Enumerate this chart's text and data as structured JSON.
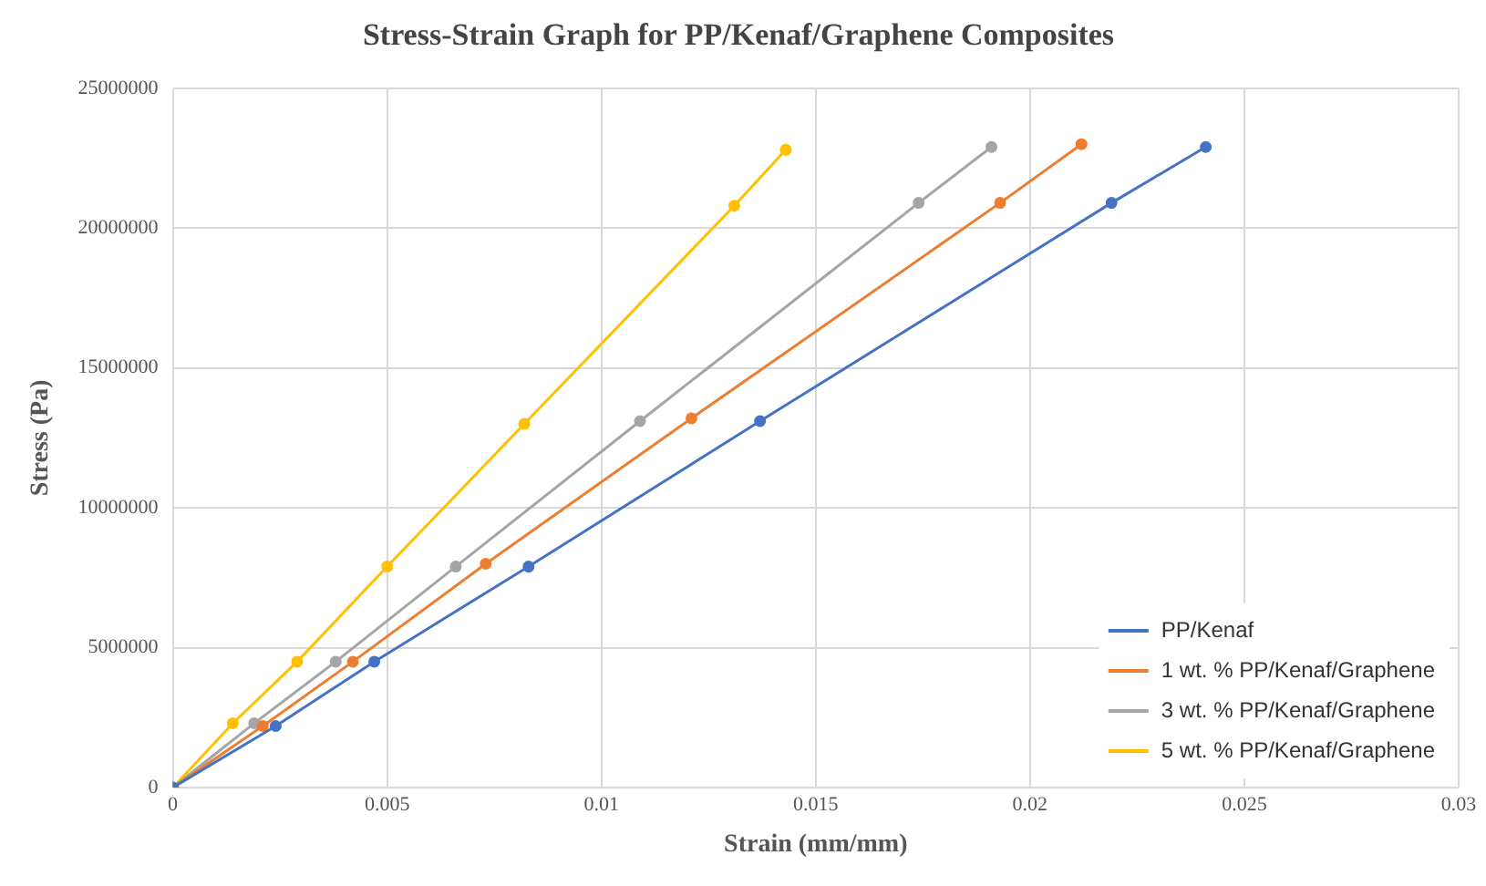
{
  "chart_data": {
    "type": "line",
    "title": "Stress-Strain Graph for PP/Kenaf/Graphene Composites",
    "xlabel": "Strain (mm/mm)",
    "ylabel": "Stress (Pa)",
    "xlim": [
      0,
      0.03
    ],
    "xticks": [
      0,
      0.005,
      0.01,
      0.015,
      0.02,
      0.025,
      0.03
    ],
    "ylim": [
      0,
      25000000
    ],
    "yticks": [
      0,
      5000000,
      10000000,
      15000000,
      20000000,
      25000000
    ],
    "grid": true,
    "legend": "bottom right",
    "marker": "circle",
    "line_style": "solid",
    "series": [
      {
        "name": "PP/Kenaf",
        "color": "#4472c4",
        "x": [
          0,
          0.0024,
          0.0047,
          0.0083,
          0.0137,
          0.0219,
          0.0241
        ],
        "values": [
          0,
          2200000,
          4500000,
          7900000,
          13100000,
          20900000,
          22900000
        ]
      },
      {
        "name": "1 wt. % PP/Kenaf/Graphene",
        "color": "#ed7d31",
        "x": [
          0,
          0.0021,
          0.0042,
          0.0073,
          0.0121,
          0.0193,
          0.0212
        ],
        "values": [
          0,
          2200000,
          4500000,
          8000000,
          13200000,
          20900000,
          23000000
        ]
      },
      {
        "name": "3 wt. % PP/Kenaf/Graphene",
        "color": "#a5a5a5",
        "x": [
          0,
          0.0019,
          0.0038,
          0.0066,
          0.0109,
          0.0174,
          0.0191
        ],
        "values": [
          0,
          2300000,
          4500000,
          7900000,
          13100000,
          20900000,
          22900000
        ]
      },
      {
        "name": "5 wt. % PP/Kenaf/Graphene",
        "color": "#ffc000",
        "x": [
          0,
          0.0014,
          0.0029,
          0.005,
          0.0082,
          0.0131,
          0.0143
        ],
        "values": [
          0,
          2300000,
          4500000,
          7900000,
          13000000,
          20800000,
          22800000
        ]
      }
    ]
  }
}
